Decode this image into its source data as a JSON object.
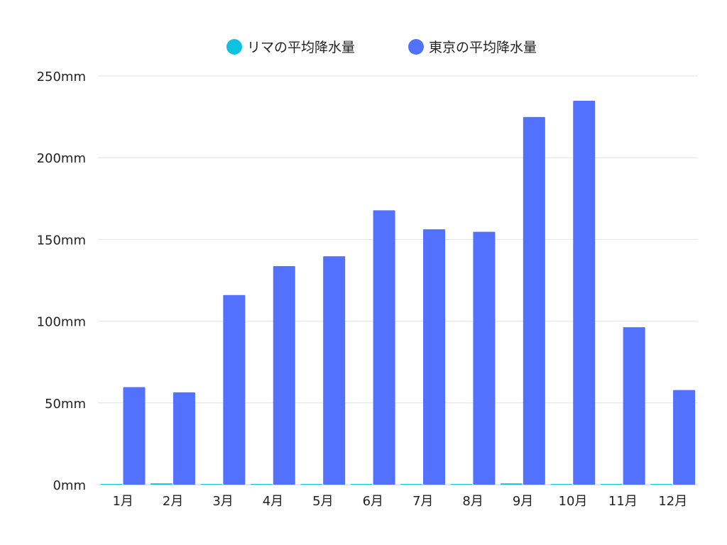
{
  "chart_data": {
    "type": "bar",
    "title": "",
    "xlabel": "",
    "ylabel": "",
    "ylim": [
      0,
      250
    ],
    "yticks": [
      0,
      50,
      100,
      150,
      200,
      250
    ],
    "ytick_labels": [
      "0mm",
      "50mm",
      "100mm",
      "150mm",
      "200mm",
      "250mm"
    ],
    "grid": true,
    "legend_position": "top",
    "categories": [
      "1月",
      "2月",
      "3月",
      "4月",
      "5月",
      "6月",
      "7月",
      "8月",
      "9月",
      "10月",
      "11月",
      "12月"
    ],
    "series": [
      {
        "name": "リマの平均降水量",
        "color": "#0fc3e0",
        "values": [
          0.2,
          0.8,
          0.4,
          0.1,
          0.1,
          0.1,
          0.1,
          0.1,
          0.8,
          0.1,
          0.1,
          0.4
        ]
      },
      {
        "name": "東京の平均降水量",
        "color": "#5271ff",
        "values": [
          59.7,
          56.5,
          116.0,
          133.7,
          139.7,
          167.8,
          156.2,
          154.7,
          224.9,
          234.8,
          96.3,
          57.9
        ]
      }
    ]
  }
}
